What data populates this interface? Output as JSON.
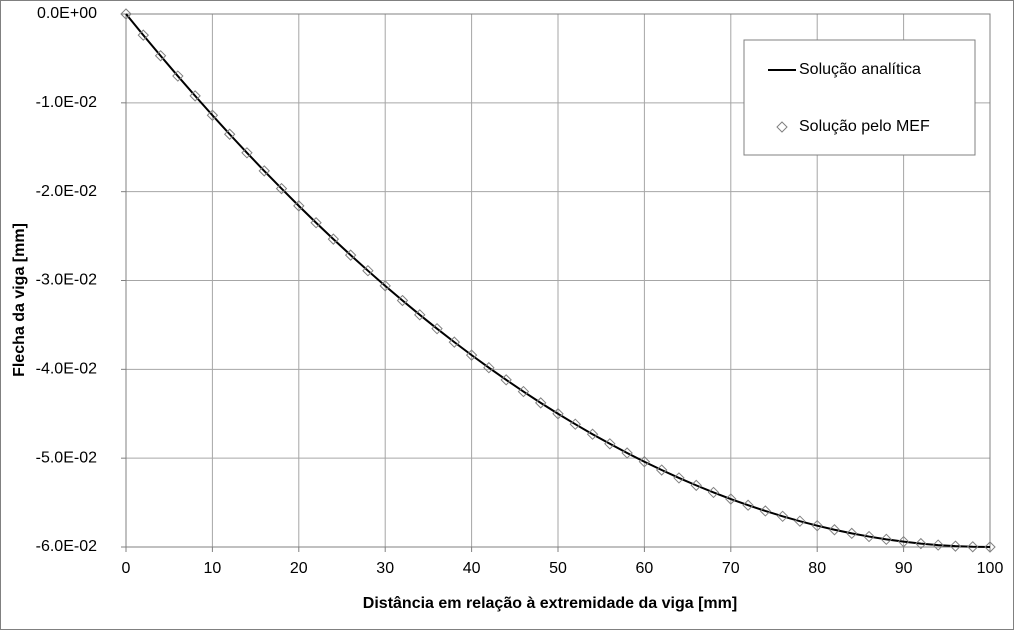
{
  "chart_data": {
    "type": "line",
    "xlabel": "Distância em relação  à extremidade da viga [mm]",
    "ylabel": "Flecha da viga [mm]",
    "x": [
      0,
      2,
      4,
      6,
      8,
      10,
      12,
      14,
      16,
      18,
      20,
      22,
      24,
      26,
      28,
      30,
      32,
      34,
      36,
      38,
      40,
      42,
      44,
      46,
      48,
      50,
      52,
      54,
      56,
      58,
      60,
      62,
      64,
      66,
      68,
      70,
      72,
      74,
      76,
      78,
      80,
      82,
      84,
      86,
      88,
      90,
      92,
      94,
      96,
      98,
      100
    ],
    "series": [
      {
        "name": "Solução analítica",
        "color": "#000000",
        "style": "line",
        "values": [
          0,
          -0.002376,
          -0.004704,
          -0.006984,
          -0.009216,
          -0.0114,
          -0.013536,
          -0.015624,
          -0.017664,
          -0.019656,
          -0.0216,
          -0.023496,
          -0.025344,
          -0.027144,
          -0.028896,
          -0.0306,
          -0.032256,
          -0.033864,
          -0.035424,
          -0.036936,
          -0.0384,
          -0.039816,
          -0.041184,
          -0.042504,
          -0.043776,
          -0.045,
          -0.046176,
          -0.047304,
          -0.048384,
          -0.049416,
          -0.0504,
          -0.051336,
          -0.052224,
          -0.053064,
          -0.053856,
          -0.0546,
          -0.055296,
          -0.055944,
          -0.056544,
          -0.057096,
          -0.0576,
          -0.058056,
          -0.058464,
          -0.058824,
          -0.059136,
          -0.0594,
          -0.059616,
          -0.059784,
          -0.059904,
          -0.059976,
          -0.06
        ]
      },
      {
        "name": "Solução pelo MEF",
        "color": "#808080",
        "style": "diamond",
        "values": [
          0,
          -0.002376,
          -0.004704,
          -0.006984,
          -0.009216,
          -0.0114,
          -0.013536,
          -0.015624,
          -0.017664,
          -0.019656,
          -0.0216,
          -0.023496,
          -0.025344,
          -0.027144,
          -0.028896,
          -0.0306,
          -0.032256,
          -0.033864,
          -0.035424,
          -0.036936,
          -0.0384,
          -0.039816,
          -0.041184,
          -0.042504,
          -0.043776,
          -0.045,
          -0.046176,
          -0.047304,
          -0.048384,
          -0.049416,
          -0.0504,
          -0.051336,
          -0.052224,
          -0.053064,
          -0.053856,
          -0.0546,
          -0.055296,
          -0.055944,
          -0.056544,
          -0.057096,
          -0.0576,
          -0.058056,
          -0.058464,
          -0.058824,
          -0.059136,
          -0.0594,
          -0.059616,
          -0.059784,
          -0.059904,
          -0.059976,
          -0.06
        ]
      }
    ],
    "xlim": [
      0,
      100
    ],
    "xticks": [
      0,
      10,
      20,
      30,
      40,
      50,
      60,
      70,
      80,
      90,
      100
    ],
    "ylim": [
      -0.06,
      0
    ],
    "yticks": [
      {
        "value": 0,
        "label": "0.0E+00"
      },
      {
        "value": -0.01,
        "label": "-1.0E-02"
      },
      {
        "value": -0.02,
        "label": "-2.0E-02"
      },
      {
        "value": -0.03,
        "label": "-3.0E-02"
      },
      {
        "value": -0.04,
        "label": "-4.0E-02"
      },
      {
        "value": -0.05,
        "label": "-5.0E-02"
      },
      {
        "value": -0.06,
        "label": "-6.0E-02"
      }
    ],
    "grid": true,
    "legend": "upper right"
  }
}
